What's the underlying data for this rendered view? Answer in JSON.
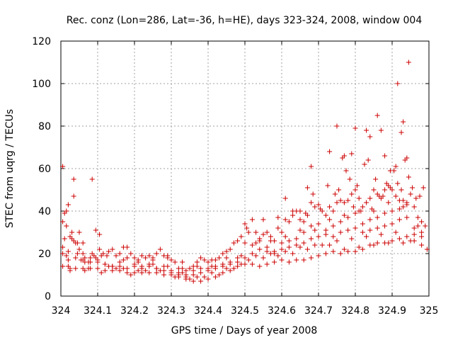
{
  "chart_data": {
    "type": "scatter",
    "title": "Rec. conz (Lon=286, Lat=-36, h=HE), days 323-324, 2008, window 004",
    "xlabel": "GPS time / Days of year 2008",
    "ylabel": "STEC from uqrg / TECUs",
    "xlim": [
      324,
      325
    ],
    "ylim": [
      0,
      120
    ],
    "x_ticks": [
      "324",
      "324.1",
      "324.2",
      "324.3",
      "324.4",
      "324.5",
      "324.6",
      "324.7",
      "324.8",
      "324.9",
      "325"
    ],
    "y_ticks": [
      "0",
      "20",
      "40",
      "60",
      "80",
      "100",
      "120"
    ],
    "grid": true,
    "marker": "+",
    "color": "#cc0000",
    "points": [
      [
        324.005,
        61
      ],
      [
        324.005,
        35
      ],
      [
        324.01,
        39
      ],
      [
        324.015,
        40
      ],
      [
        324.02,
        43
      ],
      [
        324.03,
        27
      ],
      [
        324.035,
        55
      ],
      [
        324.035,
        47
      ],
      [
        324.045,
        25
      ],
      [
        324.05,
        30
      ],
      [
        324.085,
        55
      ],
      [
        324.095,
        31
      ],
      [
        324.105,
        29
      ],
      [
        324.005,
        23
      ],
      [
        324.01,
        27
      ],
      [
        324.015,
        19
      ],
      [
        324.02,
        17
      ],
      [
        324.03,
        30
      ],
      [
        324.04,
        25
      ],
      [
        324.05,
        22
      ],
      [
        324.06,
        25
      ],
      [
        324.065,
        18
      ],
      [
        324.075,
        16
      ],
      [
        324.085,
        20
      ],
      [
        324.095,
        18
      ],
      [
        324.105,
        22
      ],
      [
        324.115,
        20
      ],
      [
        324.125,
        19
      ],
      [
        324.14,
        22
      ],
      [
        324.15,
        19
      ],
      [
        324.16,
        20
      ],
      [
        324.17,
        23
      ],
      [
        324.18,
        23
      ],
      [
        324.19,
        20
      ],
      [
        324.2,
        18
      ],
      [
        324.21,
        17
      ],
      [
        324.22,
        19
      ],
      [
        324.23,
        18
      ],
      [
        324.24,
        19
      ],
      [
        324.25,
        17
      ],
      [
        324.26,
        20
      ],
      [
        324.27,
        22
      ],
      [
        324.28,
        19
      ],
      [
        324.29,
        18
      ],
      [
        324.3,
        17
      ],
      [
        324.31,
        16
      ],
      [
        324.32,
        13
      ],
      [
        324.33,
        13
      ],
      [
        324.34,
        12
      ],
      [
        324.35,
        13
      ],
      [
        324.36,
        14
      ],
      [
        324.37,
        16
      ],
      [
        324.38,
        18
      ],
      [
        324.39,
        17
      ],
      [
        324.4,
        16
      ],
      [
        324.41,
        17
      ],
      [
        324.42,
        17
      ],
      [
        324.43,
        18
      ],
      [
        324.44,
        20
      ],
      [
        324.45,
        21
      ],
      [
        324.46,
        22
      ],
      [
        324.47,
        25
      ],
      [
        324.48,
        26
      ],
      [
        324.49,
        28
      ],
      [
        324.5,
        34
      ],
      [
        324.505,
        32
      ],
      [
        324.51,
        30
      ],
      [
        324.52,
        36
      ],
      [
        324.53,
        30
      ],
      [
        324.54,
        27
      ],
      [
        324.55,
        29
      ],
      [
        324.56,
        30
      ],
      [
        324.57,
        28
      ],
      [
        324.58,
        26
      ],
      [
        324.59,
        32
      ],
      [
        324.6,
        30
      ],
      [
        324.61,
        36
      ],
      [
        324.62,
        35
      ],
      [
        324.63,
        38
      ],
      [
        324.64,
        40
      ],
      [
        324.65,
        36
      ],
      [
        324.66,
        35
      ],
      [
        324.67,
        38
      ],
      [
        324.68,
        44
      ],
      [
        324.69,
        42
      ],
      [
        324.7,
        43
      ],
      [
        324.71,
        40
      ],
      [
        324.72,
        38
      ],
      [
        324.73,
        42
      ],
      [
        324.74,
        40
      ],
      [
        324.75,
        44
      ],
      [
        324.76,
        45
      ],
      [
        324.77,
        44
      ],
      [
        324.78,
        45
      ],
      [
        324.79,
        48
      ],
      [
        324.8,
        50
      ],
      [
        324.81,
        46
      ],
      [
        324.82,
        42
      ],
      [
        324.83,
        44
      ],
      [
        324.84,
        46
      ],
      [
        324.85,
        50
      ],
      [
        324.86,
        48
      ],
      [
        324.87,
        46
      ],
      [
        324.88,
        50
      ],
      [
        324.89,
        52
      ],
      [
        324.9,
        50
      ],
      [
        324.91,
        47
      ],
      [
        324.92,
        45
      ],
      [
        324.93,
        42
      ],
      [
        324.94,
        44
      ],
      [
        324.95,
        48
      ],
      [
        324.96,
        42
      ],
      [
        324.97,
        37
      ],
      [
        324.98,
        35
      ],
      [
        324.99,
        33
      ],
      [
        324.015,
        33
      ],
      [
        324.025,
        28
      ],
      [
        324.035,
        26
      ],
      [
        324.045,
        20
      ],
      [
        324.055,
        17
      ],
      [
        324.065,
        16
      ],
      [
        324.08,
        18
      ],
      [
        324.09,
        19
      ],
      [
        324.1,
        16
      ],
      [
        324.12,
        15
      ],
      [
        324.14,
        14
      ],
      [
        324.16,
        16
      ],
      [
        324.18,
        18
      ],
      [
        324.2,
        15
      ],
      [
        324.22,
        14
      ],
      [
        324.24,
        15
      ],
      [
        324.26,
        13
      ],
      [
        324.28,
        14
      ],
      [
        324.3,
        12
      ],
      [
        324.32,
        11
      ],
      [
        324.34,
        10
      ],
      [
        324.36,
        12
      ],
      [
        324.38,
        13
      ],
      [
        324.4,
        13
      ],
      [
        324.42,
        14
      ],
      [
        324.44,
        15
      ],
      [
        324.46,
        16
      ],
      [
        324.48,
        18
      ],
      [
        324.5,
        25
      ],
      [
        324.52,
        24
      ],
      [
        324.54,
        26
      ],
      [
        324.56,
        23
      ],
      [
        324.58,
        21
      ],
      [
        324.6,
        25
      ],
      [
        324.62,
        26
      ],
      [
        324.64,
        27
      ],
      [
        324.66,
        30
      ],
      [
        324.68,
        33
      ],
      [
        324.7,
        34
      ],
      [
        324.72,
        31
      ],
      [
        324.74,
        33
      ],
      [
        324.76,
        35
      ],
      [
        324.78,
        37
      ],
      [
        324.8,
        39
      ],
      [
        324.82,
        34
      ],
      [
        324.84,
        36
      ],
      [
        324.86,
        37
      ],
      [
        324.88,
        39
      ],
      [
        324.9,
        40
      ],
      [
        324.92,
        41
      ],
      [
        324.94,
        43
      ],
      [
        324.96,
        32
      ],
      [
        324.98,
        30
      ],
      [
        324.005,
        20
      ],
      [
        324.02,
        21
      ],
      [
        324.04,
        18
      ],
      [
        324.06,
        17
      ],
      [
        324.08,
        16
      ],
      [
        324.1,
        17
      ],
      [
        324.12,
        15
      ],
      [
        324.14,
        14
      ],
      [
        324.16,
        14
      ],
      [
        324.18,
        13
      ],
      [
        324.2,
        14
      ],
      [
        324.22,
        13
      ],
      [
        324.24,
        14
      ],
      [
        324.26,
        13
      ],
      [
        324.28,
        12
      ],
      [
        324.3,
        11
      ],
      [
        324.32,
        10
      ],
      [
        324.34,
        9
      ],
      [
        324.36,
        10
      ],
      [
        324.38,
        11
      ],
      [
        324.4,
        12
      ],
      [
        324.42,
        13
      ],
      [
        324.44,
        14
      ],
      [
        324.46,
        15
      ],
      [
        324.48,
        16
      ],
      [
        324.5,
        18
      ],
      [
        324.52,
        20
      ],
      [
        324.54,
        22
      ],
      [
        324.56,
        21
      ],
      [
        324.58,
        20
      ],
      [
        324.6,
        22
      ],
      [
        324.62,
        23
      ],
      [
        324.64,
        24
      ],
      [
        324.66,
        25
      ],
      [
        324.68,
        27
      ],
      [
        324.7,
        28
      ],
      [
        324.72,
        29
      ],
      [
        324.74,
        28
      ],
      [
        324.76,
        30
      ],
      [
        324.78,
        31
      ],
      [
        324.8,
        32
      ],
      [
        324.82,
        30
      ],
      [
        324.84,
        31
      ],
      [
        324.86,
        32
      ],
      [
        324.88,
        33
      ],
      [
        324.9,
        34
      ],
      [
        324.92,
        36
      ],
      [
        324.94,
        37
      ],
      [
        324.96,
        29
      ],
      [
        324.98,
        28
      ],
      [
        324.005,
        14
      ],
      [
        324.02,
        14
      ],
      [
        324.04,
        13
      ],
      [
        324.06,
        13
      ],
      [
        324.08,
        13
      ],
      [
        324.1,
        13
      ],
      [
        324.12,
        12
      ],
      [
        324.14,
        12
      ],
      [
        324.16,
        12
      ],
      [
        324.18,
        11
      ],
      [
        324.2,
        11
      ],
      [
        324.22,
        11
      ],
      [
        324.24,
        11
      ],
      [
        324.26,
        11
      ],
      [
        324.28,
        10
      ],
      [
        324.3,
        10
      ],
      [
        324.32,
        9
      ],
      [
        324.34,
        8
      ],
      [
        324.36,
        7
      ],
      [
        324.38,
        7
      ],
      [
        324.4,
        8
      ],
      [
        324.42,
        9
      ],
      [
        324.44,
        11
      ],
      [
        324.46,
        12
      ],
      [
        324.48,
        14
      ],
      [
        324.5,
        15
      ],
      [
        324.52,
        15
      ],
      [
        324.54,
        14
      ],
      [
        324.56,
        15
      ],
      [
        324.58,
        16
      ],
      [
        324.6,
        17
      ],
      [
        324.62,
        16
      ],
      [
        324.64,
        17
      ],
      [
        324.66,
        17
      ],
      [
        324.68,
        18
      ],
      [
        324.7,
        19
      ],
      [
        324.72,
        20
      ],
      [
        324.74,
        21
      ],
      [
        324.76,
        20
      ],
      [
        324.78,
        21
      ],
      [
        324.8,
        21
      ],
      [
        324.82,
        22
      ],
      [
        324.84,
        24
      ],
      [
        324.86,
        25
      ],
      [
        324.88,
        25
      ],
      [
        324.9,
        26
      ],
      [
        324.92,
        27
      ],
      [
        324.94,
        28
      ],
      [
        324.96,
        26
      ],
      [
        324.98,
        24
      ],
      [
        324.995,
        22
      ],
      [
        324.025,
        12
      ],
      [
        324.065,
        12
      ],
      [
        324.11,
        11
      ],
      [
        324.15,
        13
      ],
      [
        324.19,
        10
      ],
      [
        324.23,
        12
      ],
      [
        324.27,
        12
      ],
      [
        324.31,
        9
      ],
      [
        324.35,
        8
      ],
      [
        324.39,
        9
      ],
      [
        324.43,
        10
      ],
      [
        324.47,
        13
      ],
      [
        324.51,
        17
      ],
      [
        324.55,
        18
      ],
      [
        324.59,
        19
      ],
      [
        324.63,
        20
      ],
      [
        324.67,
        22
      ],
      [
        324.71,
        24
      ],
      [
        324.75,
        26
      ],
      [
        324.79,
        27
      ],
      [
        324.83,
        28
      ],
      [
        324.87,
        29
      ],
      [
        324.91,
        30
      ],
      [
        324.95,
        26
      ],
      [
        324.025,
        13
      ],
      [
        324.075,
        13
      ],
      [
        324.13,
        14
      ],
      [
        324.17,
        13
      ],
      [
        324.21,
        12
      ],
      [
        324.25,
        15
      ],
      [
        324.29,
        14
      ],
      [
        324.33,
        11
      ],
      [
        324.37,
        9
      ],
      [
        324.41,
        11
      ],
      [
        324.45,
        13
      ],
      [
        324.49,
        15
      ],
      [
        324.53,
        19
      ],
      [
        324.57,
        20
      ],
      [
        324.61,
        21
      ],
      [
        324.65,
        23
      ],
      [
        324.69,
        24
      ],
      [
        324.73,
        24
      ],
      [
        324.77,
        22
      ],
      [
        324.81,
        23
      ],
      [
        324.85,
        24
      ],
      [
        324.89,
        25
      ],
      [
        324.93,
        25
      ],
      [
        324.06,
        20
      ],
      [
        324.11,
        19
      ],
      [
        324.13,
        21
      ],
      [
        324.17,
        17
      ],
      [
        324.21,
        16
      ],
      [
        324.25,
        18
      ],
      [
        324.29,
        19
      ],
      [
        324.33,
        16
      ],
      [
        324.37,
        14
      ],
      [
        324.41,
        14
      ],
      [
        324.45,
        18
      ],
      [
        324.49,
        19
      ],
      [
        324.53,
        25
      ],
      [
        324.57,
        26
      ],
      [
        324.61,
        28
      ],
      [
        324.65,
        31
      ],
      [
        324.69,
        31
      ],
      [
        324.73,
        36
      ],
      [
        324.77,
        38
      ],
      [
        324.81,
        40
      ],
      [
        324.85,
        40
      ],
      [
        324.89,
        44
      ],
      [
        324.93,
        45
      ],
      [
        324.97,
        33
      ],
      [
        324.55,
        36
      ],
      [
        324.59,
        37
      ],
      [
        324.63,
        40
      ],
      [
        324.665,
        39
      ],
      [
        324.685,
        48
      ],
      [
        324.705,
        41
      ],
      [
        324.725,
        52
      ],
      [
        324.745,
        48
      ],
      [
        324.755,
        50
      ],
      [
        324.765,
        65
      ],
      [
        324.775,
        59
      ],
      [
        324.785,
        55
      ],
      [
        324.795,
        42
      ],
      [
        324.805,
        52
      ],
      [
        324.815,
        40
      ],
      [
        324.825,
        62
      ],
      [
        324.835,
        64
      ],
      [
        324.845,
        41
      ],
      [
        324.855,
        55
      ],
      [
        324.865,
        47
      ],
      [
        324.875,
        47
      ],
      [
        324.885,
        53
      ],
      [
        324.895,
        51
      ],
      [
        324.905,
        59
      ],
      [
        324.915,
        53
      ],
      [
        324.925,
        50
      ],
      [
        324.935,
        64
      ],
      [
        324.945,
        56
      ],
      [
        324.955,
        51
      ],
      [
        324.965,
        46
      ],
      [
        324.975,
        47
      ],
      [
        324.985,
        51
      ],
      [
        324.61,
        46
      ],
      [
        324.65,
        40
      ],
      [
        324.67,
        51
      ],
      [
        324.68,
        61
      ],
      [
        324.73,
        68
      ],
      [
        324.75,
        80
      ],
      [
        324.77,
        66
      ],
      [
        324.79,
        67
      ],
      [
        324.8,
        79
      ],
      [
        324.83,
        78
      ],
      [
        324.84,
        75
      ],
      [
        324.86,
        85
      ],
      [
        324.87,
        78
      ],
      [
        324.88,
        66
      ],
      [
        324.895,
        59
      ],
      [
        324.91,
        61
      ],
      [
        324.915,
        100
      ],
      [
        324.925,
        77
      ],
      [
        324.93,
        82
      ],
      [
        324.945,
        110
      ],
      [
        324.94,
        65
      ]
    ]
  }
}
